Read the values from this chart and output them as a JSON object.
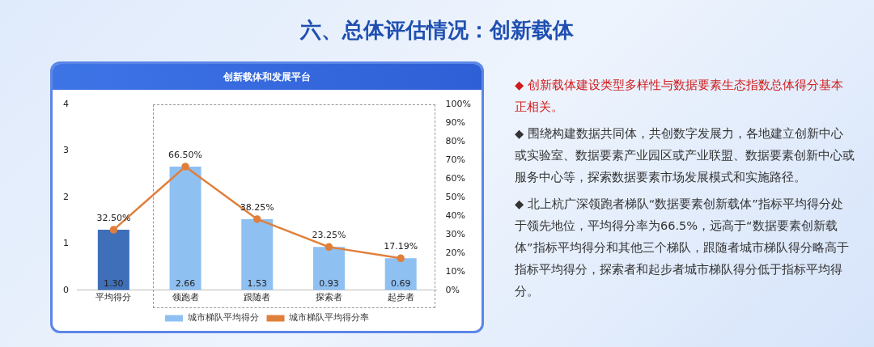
{
  "chart_data": {
    "type": "bar",
    "title": "六、总体评估情况：创新载体",
    "subtitle": "创新载体和发展平台",
    "categories": [
      "平均得分",
      "领跑者",
      "跟随者",
      "探索者",
      "起步者"
    ],
    "series": [
      {
        "name": "城市梯队平均得分",
        "colors": [
          "#3f6fb8",
          "#8fc0f2",
          "#8fc0f2",
          "#8fc0f2",
          "#8fc0f2"
        ],
        "color": "#8fc0f2",
        "values": [
          1.3,
          2.66,
          1.53,
          0.93,
          0.69
        ],
        "value_labels": [
          "1.30",
          "2.66",
          "1.53",
          "0.93",
          "0.69"
        ]
      },
      {
        "name": "城市梯队平均得分率",
        "type": "line",
        "axis": "y2",
        "color": "#e07f3a",
        "values": [
          32.5,
          66.5,
          38.25,
          23.25,
          17.19
        ],
        "value_labels": [
          "32.50%",
          "66.50%",
          "38.25%",
          "23.25%",
          "17.19%"
        ]
      }
    ],
    "ylim": [
      0,
      4
    ],
    "yticks": [
      0,
      1,
      2,
      3,
      4
    ],
    "y2lim": [
      0,
      100
    ],
    "y2ticks": [
      {
        "value": 0,
        "label": "0%"
      },
      {
        "value": 10,
        "label": "10%"
      },
      {
        "value": 20,
        "label": "20%"
      },
      {
        "value": 30,
        "label": "30%"
      },
      {
        "value": 40,
        "label": "40%"
      },
      {
        "value": 50,
        "label": "50%"
      },
      {
        "value": 60,
        "label": "60%"
      },
      {
        "value": 70,
        "label": "70%"
      },
      {
        "value": 80,
        "label": "80%"
      },
      {
        "value": 90,
        "label": "90%"
      },
      {
        "value": 100,
        "label": "100%"
      }
    ],
    "legend": "bottom",
    "marker": "circle",
    "line_style": "solid",
    "annotations": [
      "◆  创新载体建设类型多样性与数据要素生态指数总体得分基本正相关。",
      "◆  围绕构建数据共同体，共创数字发展力，各地建立创新中心或实验室、数据要素产业园区或产业联盟、数据要素创新中心或服务中心等，探索数据要素市场发展模式和实施路径。",
      "◆  北上杭广深领跑者梯队“数据要素创新载体”指标平均得分处于领先地位，平均得分率为66.5%，远高于“数据要素创新载体”指标平均得分和其他三个梯队，跟随者城市梯队得分略高于指标平均得分，探索者和起步者城市梯队得分低于指标平均得分。"
    ]
  }
}
